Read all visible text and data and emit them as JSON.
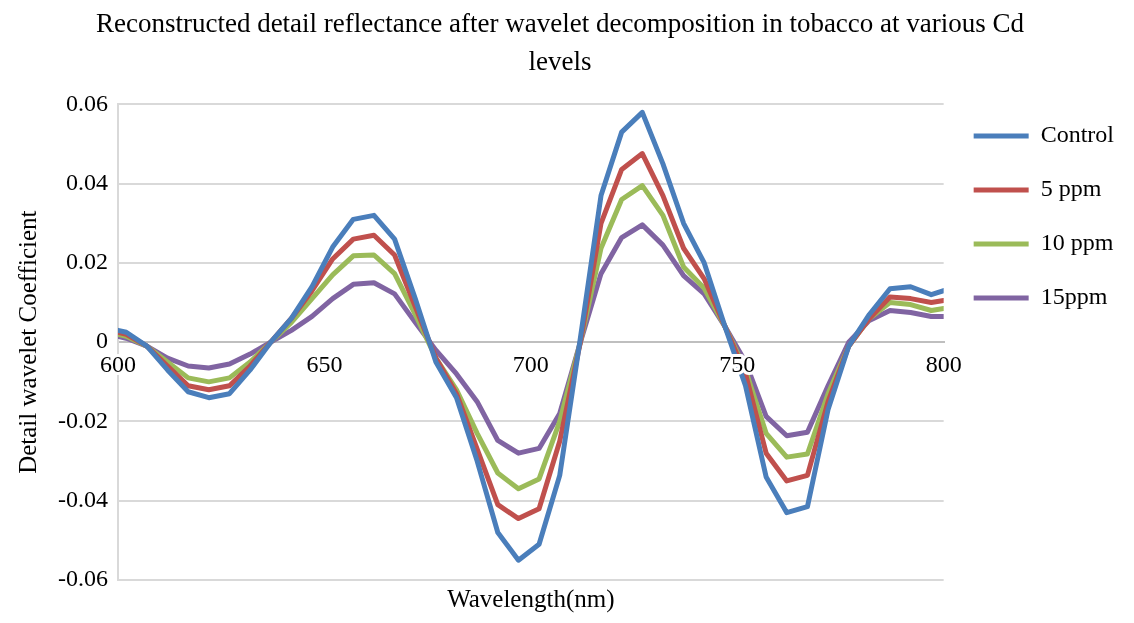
{
  "chart_data": {
    "type": "line",
    "title": "Reconstructed detail reflectance after wavelet decomposition in tobacco at various Cd levels",
    "xlabel": "Wavelength(nm)",
    "ylabel": "Detail wavelet Coefficient",
    "x": [
      600,
      602,
      607,
      612,
      617,
      622,
      627,
      632,
      637,
      642,
      647,
      652,
      657,
      662,
      667,
      672,
      677,
      682,
      687,
      692,
      697,
      702,
      707,
      712,
      717,
      722,
      727,
      732,
      737,
      742,
      747,
      752,
      757,
      762,
      767,
      772,
      777,
      782,
      787,
      792,
      797,
      800
    ],
    "series": [
      {
        "name": "Control",
        "color": "#4a7ebb",
        "values": [
          0.003,
          0.0025,
          -0.001,
          -0.007,
          -0.0125,
          -0.014,
          -0.013,
          -0.007,
          0,
          0.006,
          0.014,
          0.024,
          0.031,
          0.032,
          0.026,
          0.011,
          -0.005,
          -0.014,
          -0.03,
          -0.048,
          -0.055,
          -0.051,
          -0.0336,
          0.001,
          0.037,
          0.053,
          0.058,
          0.045,
          0.03,
          0.02,
          0.004,
          -0.011,
          -0.034,
          -0.043,
          -0.0415,
          -0.017,
          -0.001,
          0.007,
          0.0135,
          0.014,
          0.012,
          0.013
        ]
      },
      {
        "name": "5 ppm",
        "color": "#c0504d",
        "values": [
          0.0025,
          0.002,
          -0.001,
          -0.006,
          -0.011,
          -0.012,
          -0.011,
          -0.006,
          0,
          0.006,
          0.013,
          0.021,
          0.026,
          0.027,
          0.022,
          0.009,
          -0.004,
          -0.013,
          -0.027,
          -0.041,
          -0.0445,
          -0.042,
          -0.025,
          0,
          0.03,
          0.0436,
          0.0476,
          0.037,
          0.0237,
          0.016,
          0.004,
          -0.008,
          -0.028,
          -0.035,
          -0.0336,
          -0.015,
          -0.001,
          0.006,
          0.0114,
          0.011,
          0.01,
          0.0105
        ]
      },
      {
        "name": "10 ppm",
        "color": "#9bbb59",
        "values": [
          0.002,
          0.0015,
          -0.001,
          -0.005,
          -0.009,
          -0.01,
          -0.009,
          -0.005,
          0,
          0.005,
          0.011,
          0.017,
          0.0218,
          0.022,
          0.0173,
          0.007,
          -0.004,
          -0.012,
          -0.023,
          -0.033,
          -0.037,
          -0.0345,
          -0.02,
          0,
          0.0237,
          0.036,
          0.0395,
          0.032,
          0.019,
          0.0136,
          0.004,
          -0.007,
          -0.023,
          -0.029,
          -0.0282,
          -0.013,
          -0.001,
          0.006,
          0.01,
          0.0095,
          0.008,
          0.0085
        ]
      },
      {
        "name": "15ppm",
        "color": "#8064a2",
        "values": [
          0.0015,
          0.001,
          -0.001,
          -0.004,
          -0.006,
          -0.0065,
          -0.0055,
          -0.003,
          0,
          0.003,
          0.0065,
          0.011,
          0.0146,
          0.015,
          0.0122,
          0.005,
          -0.002,
          -0.008,
          -0.015,
          -0.0248,
          -0.028,
          -0.0268,
          -0.018,
          0,
          0.0173,
          0.0264,
          0.0296,
          0.0245,
          0.0168,
          0.0122,
          0.004,
          -0.005,
          -0.0187,
          -0.0236,
          -0.0227,
          -0.011,
          0,
          0.0055,
          0.008,
          0.0075,
          0.0065,
          0.0065
        ]
      }
    ],
    "xlim": [
      600,
      800
    ],
    "xticks": [
      600,
      650,
      700,
      750,
      800
    ],
    "ylim": [
      -0.06,
      0.06
    ],
    "yticks": [
      {
        "value": -0.06,
        "label": "-0.06"
      },
      {
        "value": -0.04,
        "label": "-0.04"
      },
      {
        "value": -0.02,
        "label": "-0.02"
      },
      0,
      {
        "value": 0.02,
        "label": "0.02"
      },
      {
        "value": 0.04,
        "label": "0.04"
      },
      {
        "value": 0.06,
        "label": "0.06"
      }
    ],
    "grid": "y",
    "legend": "top right",
    "marker": "none",
    "line_style": "solid"
  }
}
